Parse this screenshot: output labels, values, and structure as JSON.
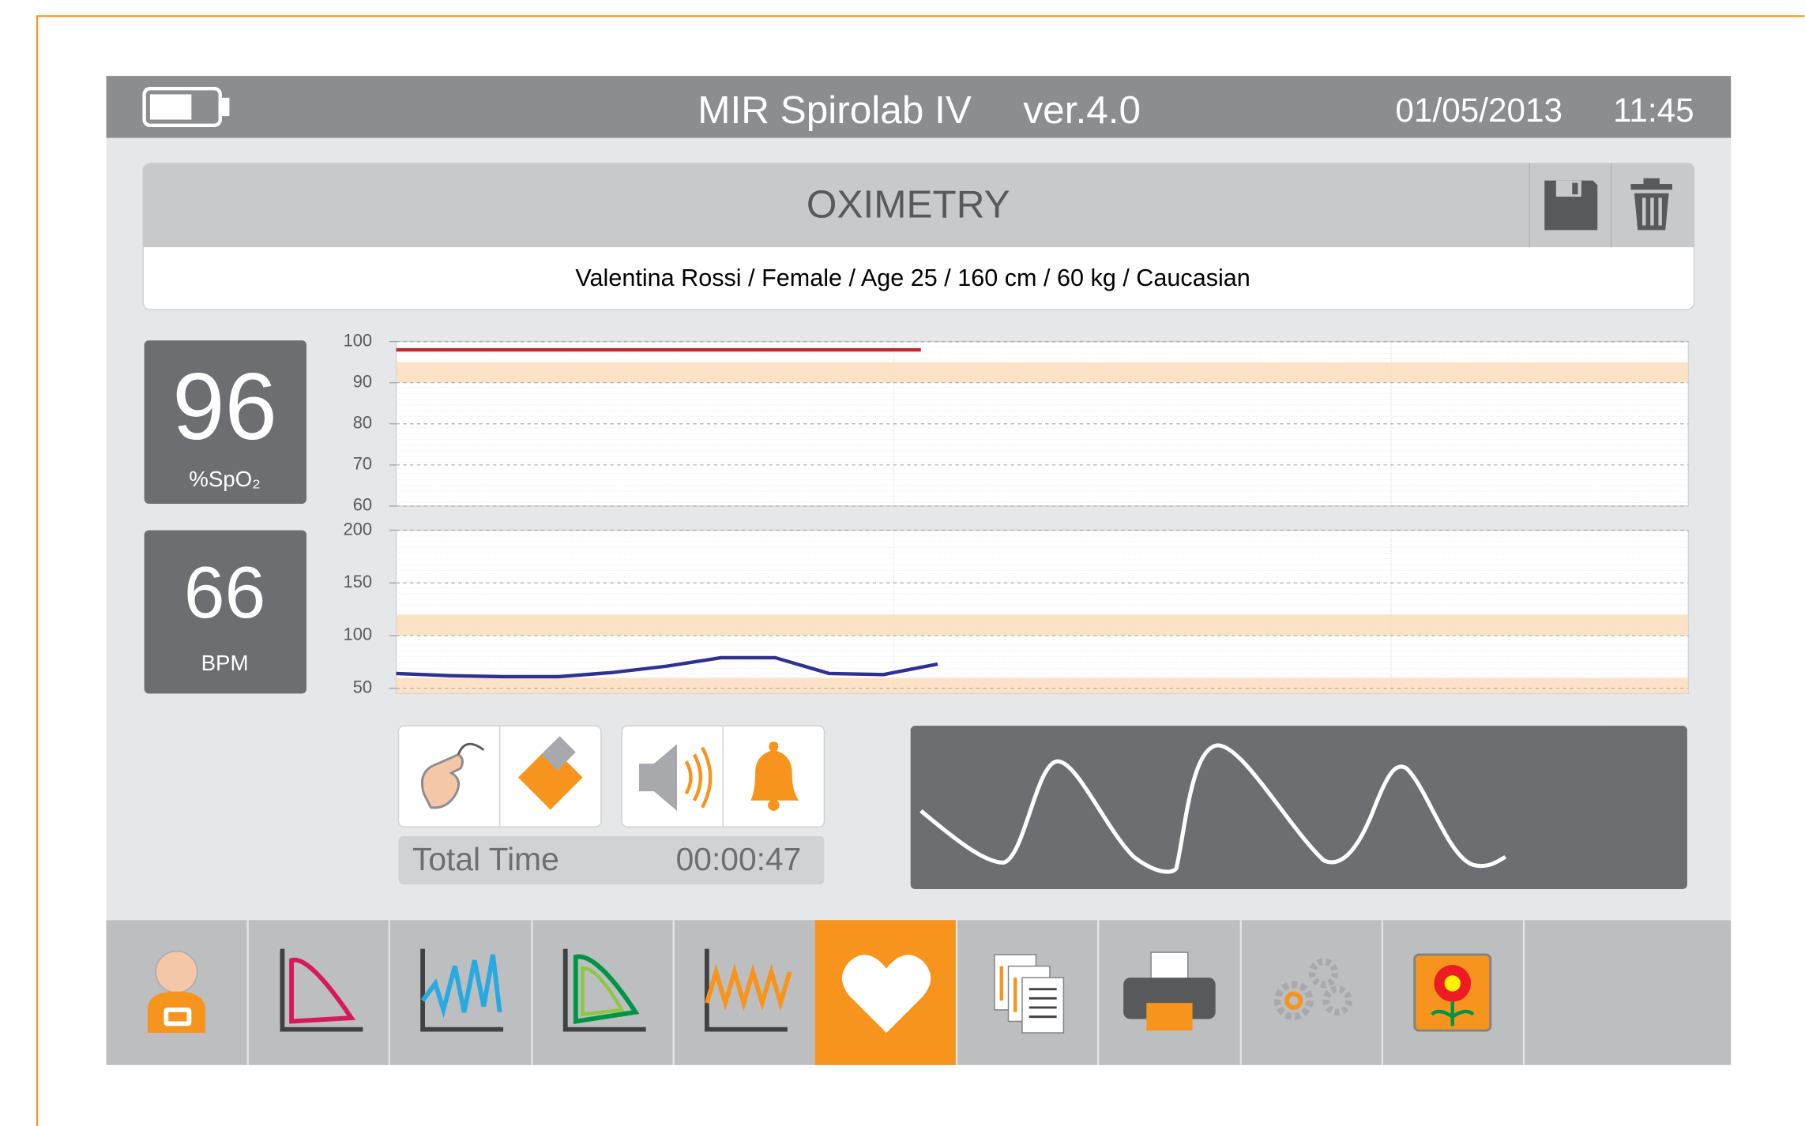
{
  "header": {
    "title": "MIR Spirolab IV",
    "version": "ver.4.0",
    "date": "01/05/2013",
    "time": "11:45"
  },
  "panel": {
    "title": "OXIMETRY",
    "patient": "Valentina Rossi / Female / Age 25 / 160 cm / 60 kg / Caucasian"
  },
  "spo2": {
    "value": "96",
    "label": "%SpO₂"
  },
  "pulse": {
    "value": "66",
    "label": "BPM"
  },
  "charts": {
    "spo2": {
      "ylim": [
        60,
        100
      ],
      "yticks": [
        100,
        90,
        80,
        70,
        60
      ],
      "bands": [
        [
          90,
          95
        ]
      ],
      "color": "#c1272d",
      "values": [
        98,
        98,
        98,
        98,
        98,
        98,
        98,
        98,
        98,
        98,
        98
      ]
    },
    "pulse": {
      "ylim": [
        45,
        200
      ],
      "yticks": [
        200,
        150,
        100,
        50
      ],
      "bands": [
        [
          100,
          120
        ],
        [
          45,
          60
        ]
      ],
      "color": "#2e3192",
      "values": [
        64,
        62,
        61,
        61,
        65,
        71,
        79,
        79,
        64,
        63,
        73
      ]
    }
  },
  "timer": {
    "label": "Total Time",
    "value": "00:00:47"
  }
}
